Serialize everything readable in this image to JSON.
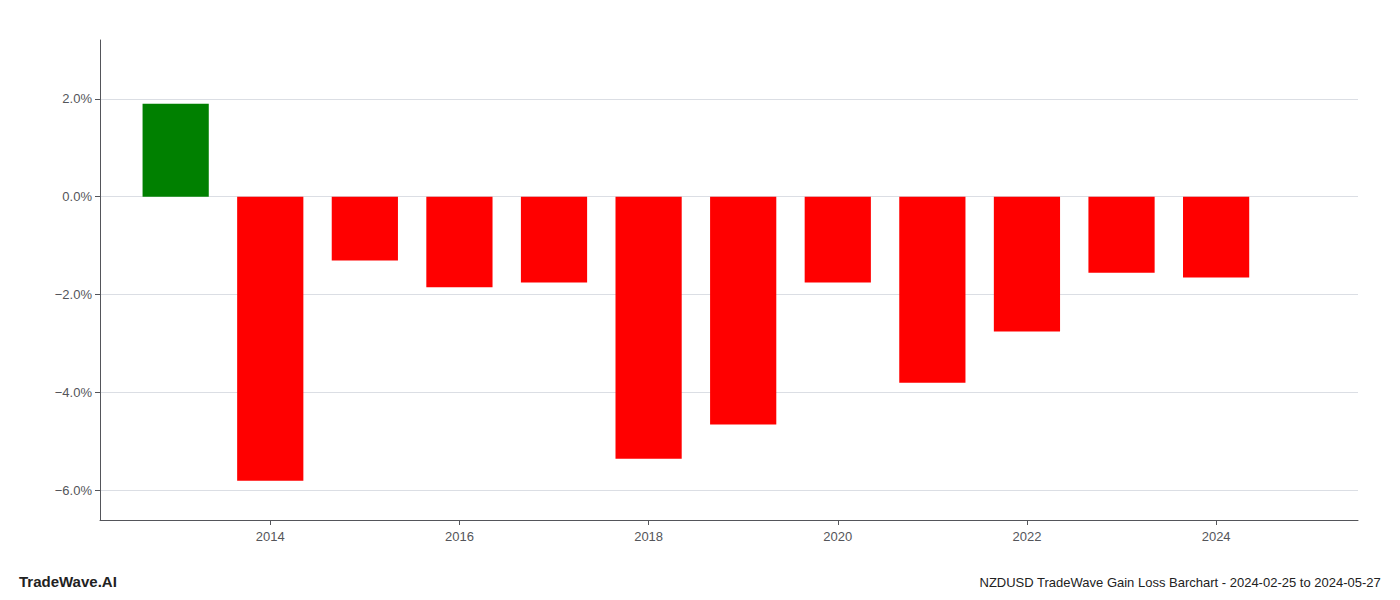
{
  "chart_data": {
    "type": "bar",
    "title": "NZDUSD TradeWave Gain Loss Barchart - 2024-02-25 to 2024-05-27",
    "annotations": [
      "TradeWave.AI"
    ],
    "x": [
      2013,
      2014,
      2015,
      2016,
      2017,
      2018,
      2019,
      2020,
      2021,
      2022,
      2023,
      2024
    ],
    "values": [
      1.9,
      -5.8,
      -1.3,
      -1.85,
      -1.75,
      -5.35,
      -4.65,
      -1.75,
      -3.8,
      -2.75,
      -1.55,
      -1.65
    ],
    "colors": [
      "#008000",
      "#ff0000",
      "#ff0000",
      "#ff0000",
      "#ff0000",
      "#ff0000",
      "#ff0000",
      "#ff0000",
      "#ff0000",
      "#ff0000",
      "#ff0000",
      "#ff0000"
    ],
    "xlim": [
      2012.2,
      2025.5
    ],
    "xticks": [
      2014,
      2016,
      2018,
      2020,
      2022,
      2024
    ],
    "ylim": [
      -6.6,
      3.2
    ],
    "yticks": [
      {
        "value": -6.0,
        "label": "−6.0%"
      },
      {
        "value": -4.0,
        "label": "−4.0%"
      },
      {
        "value": -2.0,
        "label": "−2.0%"
      },
      {
        "value": 0.0,
        "label": "0.0%"
      },
      {
        "value": 2.0,
        "label": "2.0%"
      }
    ],
    "grid": true
  }
}
